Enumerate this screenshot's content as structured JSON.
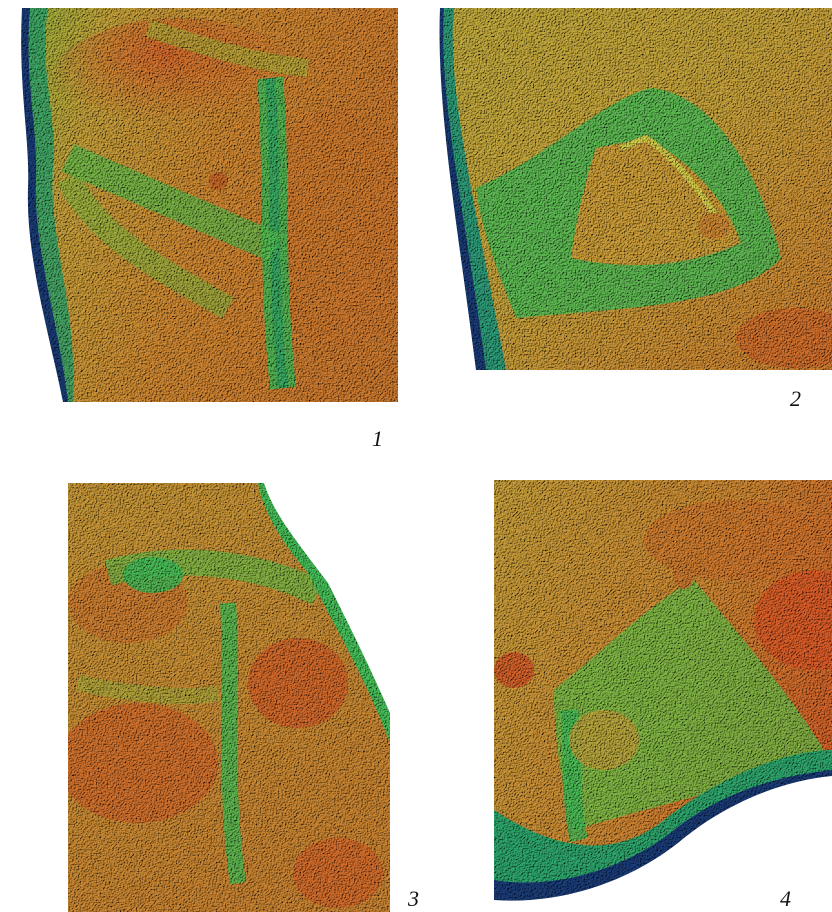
{
  "figure": {
    "panels": [
      {
        "label": "1"
      },
      {
        "label": "2"
      },
      {
        "label": "3"
      },
      {
        "label": "4"
      }
    ]
  },
  "colors": {
    "ridge_orange": "#d9682b",
    "mid_yellow": "#c9b441",
    "groove_green": "#3fbf5a",
    "deep_teal": "#1f9a8a",
    "edge_blue": "#1c3e7a"
  }
}
